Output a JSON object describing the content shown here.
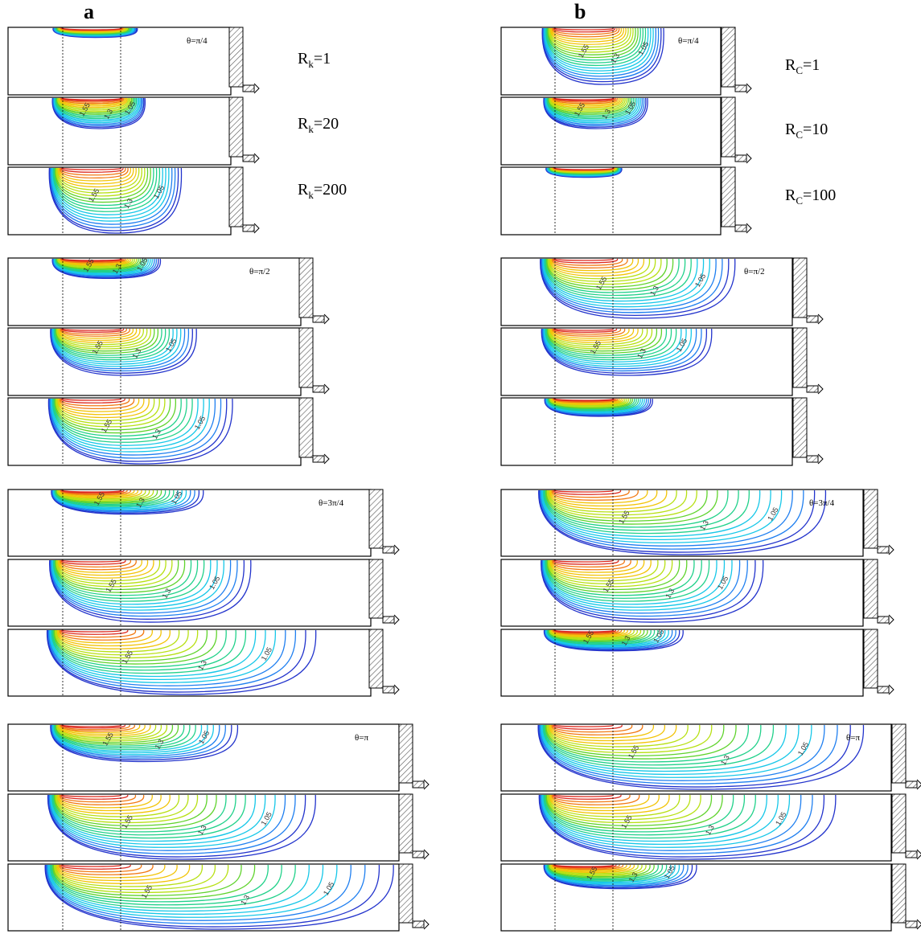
{
  "figure": {
    "columns": [
      {
        "label": "a",
        "param_symbol": "R",
        "param_sub": "k",
        "param_values": [
          "1",
          "20",
          "200"
        ],
        "iso_labels": [
          "1.55",
          "1.3",
          "1.05",
          "1.8",
          "1.13"
        ]
      },
      {
        "label": "b",
        "param_symbol": "R",
        "param_sub": "C",
        "param_values": [
          "1",
          "10",
          "100"
        ],
        "iso_labels": [
          "1.55",
          "1.3",
          "1.05",
          "1.8",
          "1.13"
        ]
      }
    ],
    "phases": [
      {
        "label": "θ=π/4",
        "spread": {
          "a": [
            0.15,
            0.22,
            0.55
          ],
          "b": [
            0.47,
            0.32,
            0.08
          ]
        },
        "depth": {
          "a": [
            0.12,
            0.45,
            1.0
          ],
          "b": [
            0.85,
            0.45,
            0.12
          ]
        }
      },
      {
        "label": "θ=π/2",
        "spread": {
          "a": [
            0.22,
            0.42,
            0.62
          ],
          "b": [
            0.68,
            0.55,
            0.22
          ]
        },
        "depth": {
          "a": [
            0.28,
            0.7,
            1.0
          ],
          "b": [
            0.9,
            0.7,
            0.25
          ]
        }
      },
      {
        "label": "θ=3π/4",
        "spread": {
          "a": [
            0.33,
            0.52,
            0.78
          ],
          "b": [
            0.85,
            0.6,
            0.28
          ]
        },
        "depth": {
          "a": [
            0.35,
            0.95,
            1.0
          ],
          "b": [
            1.0,
            0.95,
            0.3
          ]
        }
      },
      {
        "label": "θ=π",
        "spread": {
          "a": [
            0.42,
            0.7,
            0.98
          ],
          "b": [
            0.9,
            0.8,
            0.3
          ]
        },
        "depth": {
          "a": [
            0.55,
            1.0,
            1.0
          ],
          "b": [
            1.0,
            1.0,
            0.35
          ]
        }
      }
    ],
    "colormap": [
      "#2233cc",
      "#1f7ff0",
      "#16c7e8",
      "#21d18a",
      "#5fd32c",
      "#b7e013",
      "#f2c408",
      "#f27a14",
      "#dd2a1f"
    ]
  }
}
